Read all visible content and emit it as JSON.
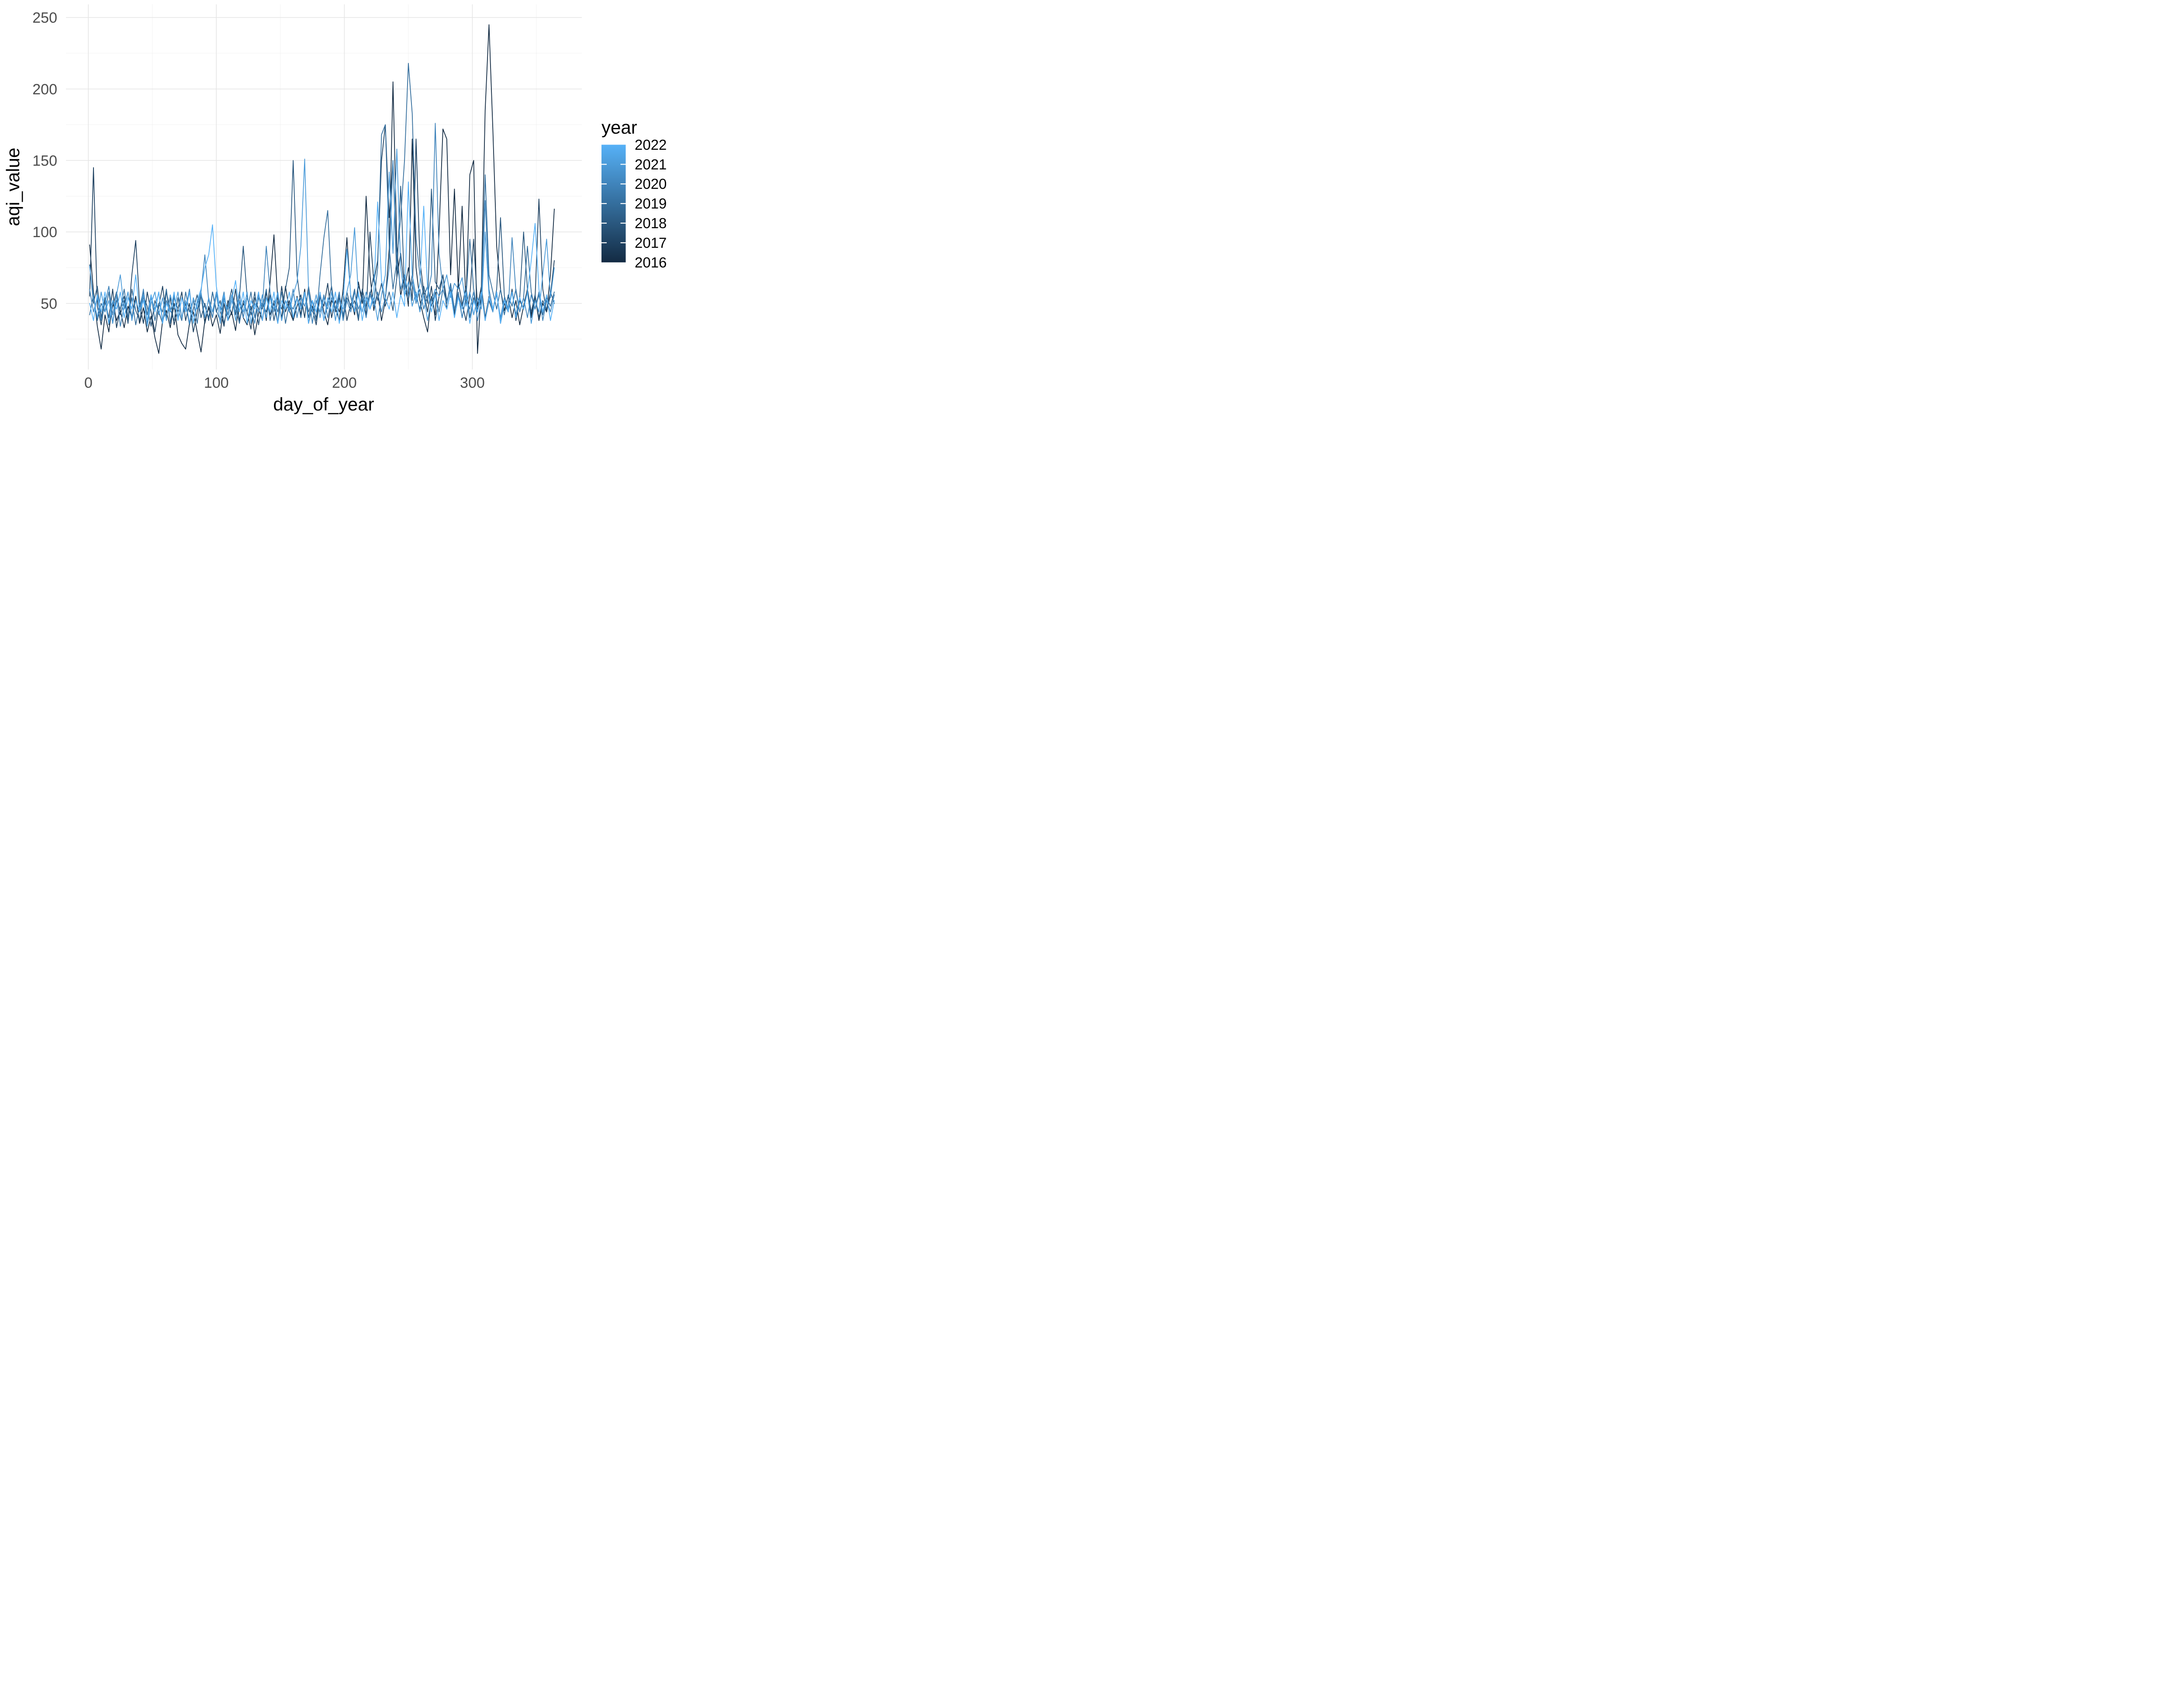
{
  "chart_data": {
    "type": "line",
    "title": "",
    "xlabel": "day_of_year",
    "ylabel": "aqi_value",
    "x_start_day": 1,
    "x_step_days": 3,
    "xlim": [
      -17.5,
      385.5
    ],
    "ylim": [
      3.8,
      259.2
    ],
    "x_ticks": [
      0,
      100,
      200,
      300
    ],
    "x_minor_ticks": [
      50,
      150,
      250,
      350
    ],
    "y_ticks": [
      50,
      100,
      150,
      200,
      250
    ],
    "y_minor_ticks": [
      25,
      75,
      125,
      175,
      225
    ],
    "grid": "major+minor",
    "style": {
      "background": "#FFFFFF",
      "grid_major_color": "#E4E4E4",
      "grid_minor_color": "#F0F0F0",
      "tick_label_color": "#4D4D4D",
      "title_color": "#000000",
      "legend_label_color": "#000000"
    },
    "legend": {
      "title": "year",
      "position": "right",
      "type": "colorbar",
      "gradient_high": "#56B1F7",
      "gradient_low": "#132B43",
      "entries": [
        {
          "label": "2022",
          "value": 2022,
          "color": "#56B1F7"
        },
        {
          "label": "2021",
          "value": 2021,
          "color": "#4B9BD9"
        },
        {
          "label": "2020",
          "value": 2020,
          "color": "#4084BB"
        },
        {
          "label": "2019",
          "value": 2019,
          "color": "#346E9D"
        },
        {
          "label": "2018",
          "value": 2018,
          "color": "#2A587F"
        },
        {
          "label": "2017",
          "value": 2017,
          "color": "#1E4161"
        },
        {
          "label": "2016",
          "value": 2016,
          "color": "#132B43"
        }
      ]
    },
    "series": [
      {
        "name": "2016",
        "color": "#132B43",
        "values": [
          91,
          58,
          34,
          18,
          42,
          30,
          52,
          38,
          45,
          33,
          48,
          40,
          55,
          36,
          47,
          30,
          41,
          26,
          15,
          38,
          45,
          33,
          50,
          28,
          22,
          18,
          36,
          44,
          30,
          16,
          38,
          47,
          34,
          42,
          29,
          50,
          38,
          44,
          31,
          52,
          40,
          35,
          48,
          28,
          43,
          56,
          38,
          65,
          98,
          52,
          40,
          62,
          45,
          38,
          55,
          42,
          60,
          36,
          48,
          40,
          57,
          44,
          35,
          52,
          47,
          38,
          60,
          96,
          55,
          42,
          65,
          50,
          125,
          70,
          45,
          58,
          38,
          52,
          88,
          205,
          90,
          55,
          70,
          48,
          165,
          75,
          52,
          40,
          30,
          55,
          42,
          100,
          172,
          165,
          70,
          130,
          60,
          118,
          50,
          140,
          150,
          15,
          62,
          185,
          245,
          172,
          90,
          60,
          45,
          55,
          40,
          52,
          35,
          48,
          60,
          42,
          55,
          38,
          50,
          44,
          70,
          116
        ]
      },
      {
        "name": "2017",
        "color": "#1E4161",
        "values": [
          55,
          145,
          48,
          35,
          52,
          40,
          60,
          33,
          46,
          55,
          38,
          70,
          94,
          50,
          36,
          58,
          44,
          30,
          48,
          62,
          40,
          54,
          35,
          46,
          58,
          38,
          50,
          30,
          44,
          56,
          36,
          48,
          40,
          58,
          45,
          34,
          52,
          42,
          60,
          38,
          50,
          44,
          32,
          54,
          46,
          38,
          58,
          42,
          50,
          36,
          62,
          44,
          52,
          38,
          48,
          56,
          40,
          62,
          46,
          35,
          55,
          48,
          64,
          40,
          52,
          44,
          58,
          38,
          50,
          45,
          62,
          55,
          42,
          100,
          65,
          80,
          150,
          175,
          110,
          150,
          68,
          85,
          60,
          75,
          52,
          165,
          80,
          58,
          44,
          62,
          38,
          55,
          70,
          46,
          58,
          42,
          65,
          50,
          38,
          55,
          95,
          48,
          62,
          40,
          55,
          45,
          58,
          36,
          50,
          44,
          60,
          38,
          52,
          46,
          58,
          40,
          54,
          123,
          60,
          44,
          56,
          80
        ]
      },
      {
        "name": "2018",
        "color": "#2A587F",
        "values": [
          77,
          50,
          62,
          40,
          54,
          35,
          48,
          58,
          42,
          52,
          36,
          60,
          45,
          38,
          55,
          48,
          34,
          52,
          44,
          36,
          58,
          46,
          38,
          54,
          40,
          50,
          35,
          46,
          56,
          40,
          50,
          38,
          58,
          44,
          52,
          36,
          48,
          60,
          42,
          54,
          90,
          55,
          42,
          58,
          35,
          50,
          44,
          56,
          38,
          52,
          46,
          60,
          75,
          150,
          70,
          48,
          58,
          40,
          52,
          44,
          56,
          38,
          50,
          62,
          44,
          54,
          40,
          58,
          46,
          52,
          38,
          60,
          48,
          55,
          70,
          52,
          64,
          48,
          58,
          45,
          68,
          132,
          60,
          52,
          70,
          55,
          46,
          62,
          50,
          130,
          65,
          60,
          70,
          52,
          60,
          44,
          56,
          48,
          62,
          40,
          54,
          46,
          58,
          38,
          52,
          44,
          60,
          110,
          55,
          46,
          58,
          42,
          54,
          100,
          60,
          44,
          56,
          40,
          52,
          46,
          58,
          50
        ]
      },
      {
        "name": "2019",
        "color": "#346E9D",
        "values": [
          42,
          56,
          38,
          50,
          44,
          58,
          36,
          52,
          46,
          60,
          40,
          54,
          35,
          48,
          58,
          42,
          56,
          38,
          50,
          44,
          60,
          36,
          54,
          46,
          38,
          58,
          44,
          52,
          36,
          56,
          48,
          40,
          58,
          45,
          38,
          54,
          42,
          56,
          48,
          36,
          52,
          44,
          58,
          40,
          54,
          46,
          60,
          38,
          52,
          44,
          58,
          36,
          50,
          46,
          54,
          40,
          58,
          44,
          52,
          38,
          70,
          96,
          115,
          60,
          46,
          56,
          42,
          54,
          48,
          60,
          40,
          56,
          46,
          58,
          50,
          75,
          168,
          175,
          90,
          60,
          80,
          110,
          150,
          218,
          183,
          95,
          70,
          55,
          62,
          48,
          58,
          44,
          60,
          50,
          64,
          46,
          58,
          40,
          54,
          95,
          60,
          44,
          56,
          140,
          70,
          58,
          46,
          60,
          42,
          56,
          48,
          60,
          44,
          54,
          90,
          58,
          46,
          56,
          42,
          54,
          48,
          58
        ]
      },
      {
        "name": "2020",
        "color": "#4084BB",
        "values": [
          60,
          44,
          54,
          38,
          50,
          62,
          42,
          56,
          34,
          48,
          58,
          40,
          52,
          44,
          60,
          36,
          54,
          46,
          58,
          38,
          52,
          44,
          56,
          40,
          54,
          46,
          60,
          36,
          50,
          58,
          84,
          52,
          40,
          56,
          46,
          58,
          38,
          52,
          44,
          58,
          40,
          54,
          46,
          36,
          56,
          48,
          90,
          58,
          44,
          56,
          38,
          52,
          46,
          60,
          40,
          54,
          48,
          58,
          36,
          52,
          44,
          56,
          40,
          54,
          46,
          58,
          38,
          52,
          44,
          58,
          46,
          54,
          40,
          56,
          48,
          58,
          44,
          54,
          75,
          150,
          80,
          60,
          70,
          55,
          65,
          50,
          60,
          46,
          56,
          70,
          176,
          85,
          60,
          50,
          62,
          46,
          56,
          40,
          54,
          46,
          58,
          38,
          52,
          122,
          60,
          46,
          56,
          40,
          54,
          46,
          96,
          58,
          44,
          54,
          40,
          56,
          46,
          58,
          38,
          52,
          44,
          56
        ]
      },
      {
        "name": "2021",
        "color": "#4B9BD9",
        "values": [
          76,
          54,
          40,
          58,
          44,
          52,
          36,
          56,
          70,
          46,
          58,
          38,
          52,
          44,
          56,
          34,
          50,
          58,
          42,
          54,
          38,
          56,
          46,
          58,
          40,
          52,
          36,
          54,
          46,
          58,
          40,
          54,
          44,
          58,
          36,
          52,
          46,
          56,
          38,
          52,
          44,
          58,
          36,
          50,
          44,
          56,
          40,
          54,
          46,
          58,
          38,
          52,
          44,
          56,
          65,
          90,
          151,
          60,
          44,
          56,
          40,
          54,
          46,
          58,
          38,
          52,
          46,
          58,
          70,
          103,
          55,
          44,
          58,
          46,
          54,
          38,
          56,
          70,
          142,
          85,
          158,
          75,
          55,
          65,
          48,
          58,
          44,
          56,
          38,
          52,
          60,
          55,
          60,
          70,
          54,
          64,
          60,
          68,
          48,
          58,
          42,
          54,
          46,
          100,
          56,
          44,
          58,
          38,
          52,
          46,
          58,
          40,
          54,
          46,
          58,
          36,
          52,
          44,
          70,
          95,
          54,
          75
        ]
      },
      {
        "name": "2022",
        "color": "#56B1F7",
        "values": [
          50,
          38,
          56,
          44,
          58,
          36,
          52,
          46,
          58,
          40,
          54,
          46,
          70,
          44,
          52,
          38,
          56,
          44,
          58,
          36,
          50,
          44,
          58,
          38,
          54,
          44,
          58,
          36,
          52,
          60,
          75,
          84,
          105,
          62,
          44,
          56,
          38,
          52,
          66,
          44,
          58,
          36,
          52,
          46,
          58,
          38,
          54,
          44,
          58,
          36,
          52,
          46,
          58,
          40,
          54,
          46,
          58,
          36,
          52,
          44,
          58,
          38,
          54,
          44,
          58,
          36,
          52,
          88,
          56,
          44,
          58,
          38,
          54,
          46,
          58,
          121,
          66,
          54,
          46,
          58,
          40,
          56,
          48,
          135,
          70,
          52,
          64,
          118,
          60,
          44,
          56,
          38,
          52,
          46,
          58,
          40,
          54,
          46,
          58,
          36,
          52,
          44,
          58,
          38,
          54,
          46,
          58,
          36,
          52,
          44,
          58,
          40,
          54,
          46,
          58,
          80,
          106,
          60,
          44,
          56,
          38,
          52
        ]
      }
    ]
  }
}
